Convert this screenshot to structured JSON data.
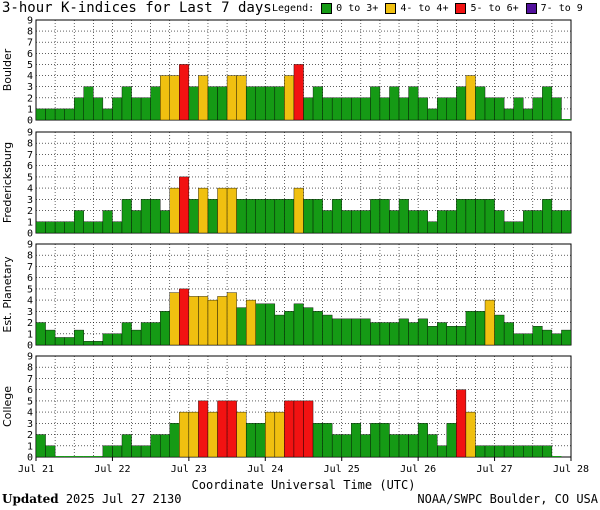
{
  "header": {
    "title": "3-hour K-indices for Last 7 days",
    "legend_label": "Legend:",
    "legend": [
      {
        "label": "0 to 3+",
        "color": "#159a15"
      },
      {
        "label": "4- to 4+",
        "color": "#f0c010"
      },
      {
        "label": "5- to 6+",
        "color": "#f21212"
      },
      {
        "label": "7- to 9",
        "color": "#52109c"
      }
    ]
  },
  "footer": {
    "updated_label": "Updated",
    "updated_value": "2025 Jul 27 2130",
    "source": "NOAA/SWPC Boulder, CO USA"
  },
  "chart_data": {
    "type": "bar",
    "xlabel": "Coordinate Universal Time (UTC)",
    "x_ticks": [
      "Jul 21",
      "Jul 22",
      "Jul 23",
      "Jul 24",
      "Jul 25",
      "Jul 26",
      "Jul 27",
      "Jul 28"
    ],
    "ylim": [
      0,
      9
    ],
    "y_ticks": [
      0,
      1,
      2,
      3,
      4,
      5,
      6,
      7,
      8,
      9
    ],
    "grid": true,
    "series": [
      {
        "name": "Boulder",
        "values": [
          1,
          1,
          1,
          1,
          2,
          3,
          2,
          1,
          2,
          3,
          2,
          2,
          3,
          4,
          4,
          5,
          3,
          4,
          3,
          3,
          4,
          4,
          3,
          3,
          3,
          3,
          4,
          5,
          2,
          3,
          2,
          2,
          2,
          2,
          2,
          3,
          2,
          3,
          2,
          3,
          2,
          1,
          2,
          2,
          3,
          4,
          3,
          2,
          2,
          1,
          2,
          1,
          2,
          3,
          2,
          0
        ]
      },
      {
        "name": "Fredericksburg",
        "values": [
          1,
          1,
          1,
          1,
          2,
          1,
          1,
          2,
          1,
          3,
          2,
          3,
          3,
          2,
          4,
          5,
          3,
          4,
          3,
          4,
          4,
          3,
          3,
          3,
          3,
          3,
          3,
          4,
          3,
          3,
          2,
          3,
          2,
          2,
          2,
          3,
          3,
          2,
          3,
          2,
          2,
          1,
          2,
          2,
          3,
          3,
          3,
          3,
          2,
          1,
          1,
          2,
          2,
          3,
          2,
          2,
          0
        ]
      },
      {
        "name": "Est. Planetary",
        "values": [
          2,
          1.33,
          0.67,
          0.67,
          1.33,
          0.33,
          0.33,
          1,
          1,
          2,
          1.33,
          2,
          2,
          3,
          4.67,
          5,
          4.33,
          4.33,
          4,
          4.33,
          4.67,
          3.33,
          4,
          3.67,
          3.67,
          2.67,
          3,
          3.67,
          3.33,
          3,
          2.67,
          2.33,
          2.33,
          2.33,
          2.33,
          2,
          2,
          2,
          2.33,
          2,
          2.33,
          1.67,
          2,
          1.67,
          1.67,
          3,
          3,
          4,
          2.67,
          2,
          1,
          1,
          1.67,
          1.33,
          1,
          1.33,
          1.33
        ]
      },
      {
        "name": "College",
        "values": [
          2,
          1,
          0,
          0,
          0,
          0,
          0,
          1,
          1,
          2,
          1,
          1,
          2,
          2,
          3,
          4,
          4,
          5,
          4,
          5,
          5,
          4,
          3,
          3,
          4,
          4,
          5,
          5,
          5,
          3,
          3,
          2,
          2,
          3,
          2,
          3,
          3,
          2,
          2,
          2,
          3,
          2,
          1,
          3,
          6,
          4,
          1,
          1,
          1,
          1,
          1,
          1,
          1,
          1,
          0
        ]
      }
    ]
  }
}
